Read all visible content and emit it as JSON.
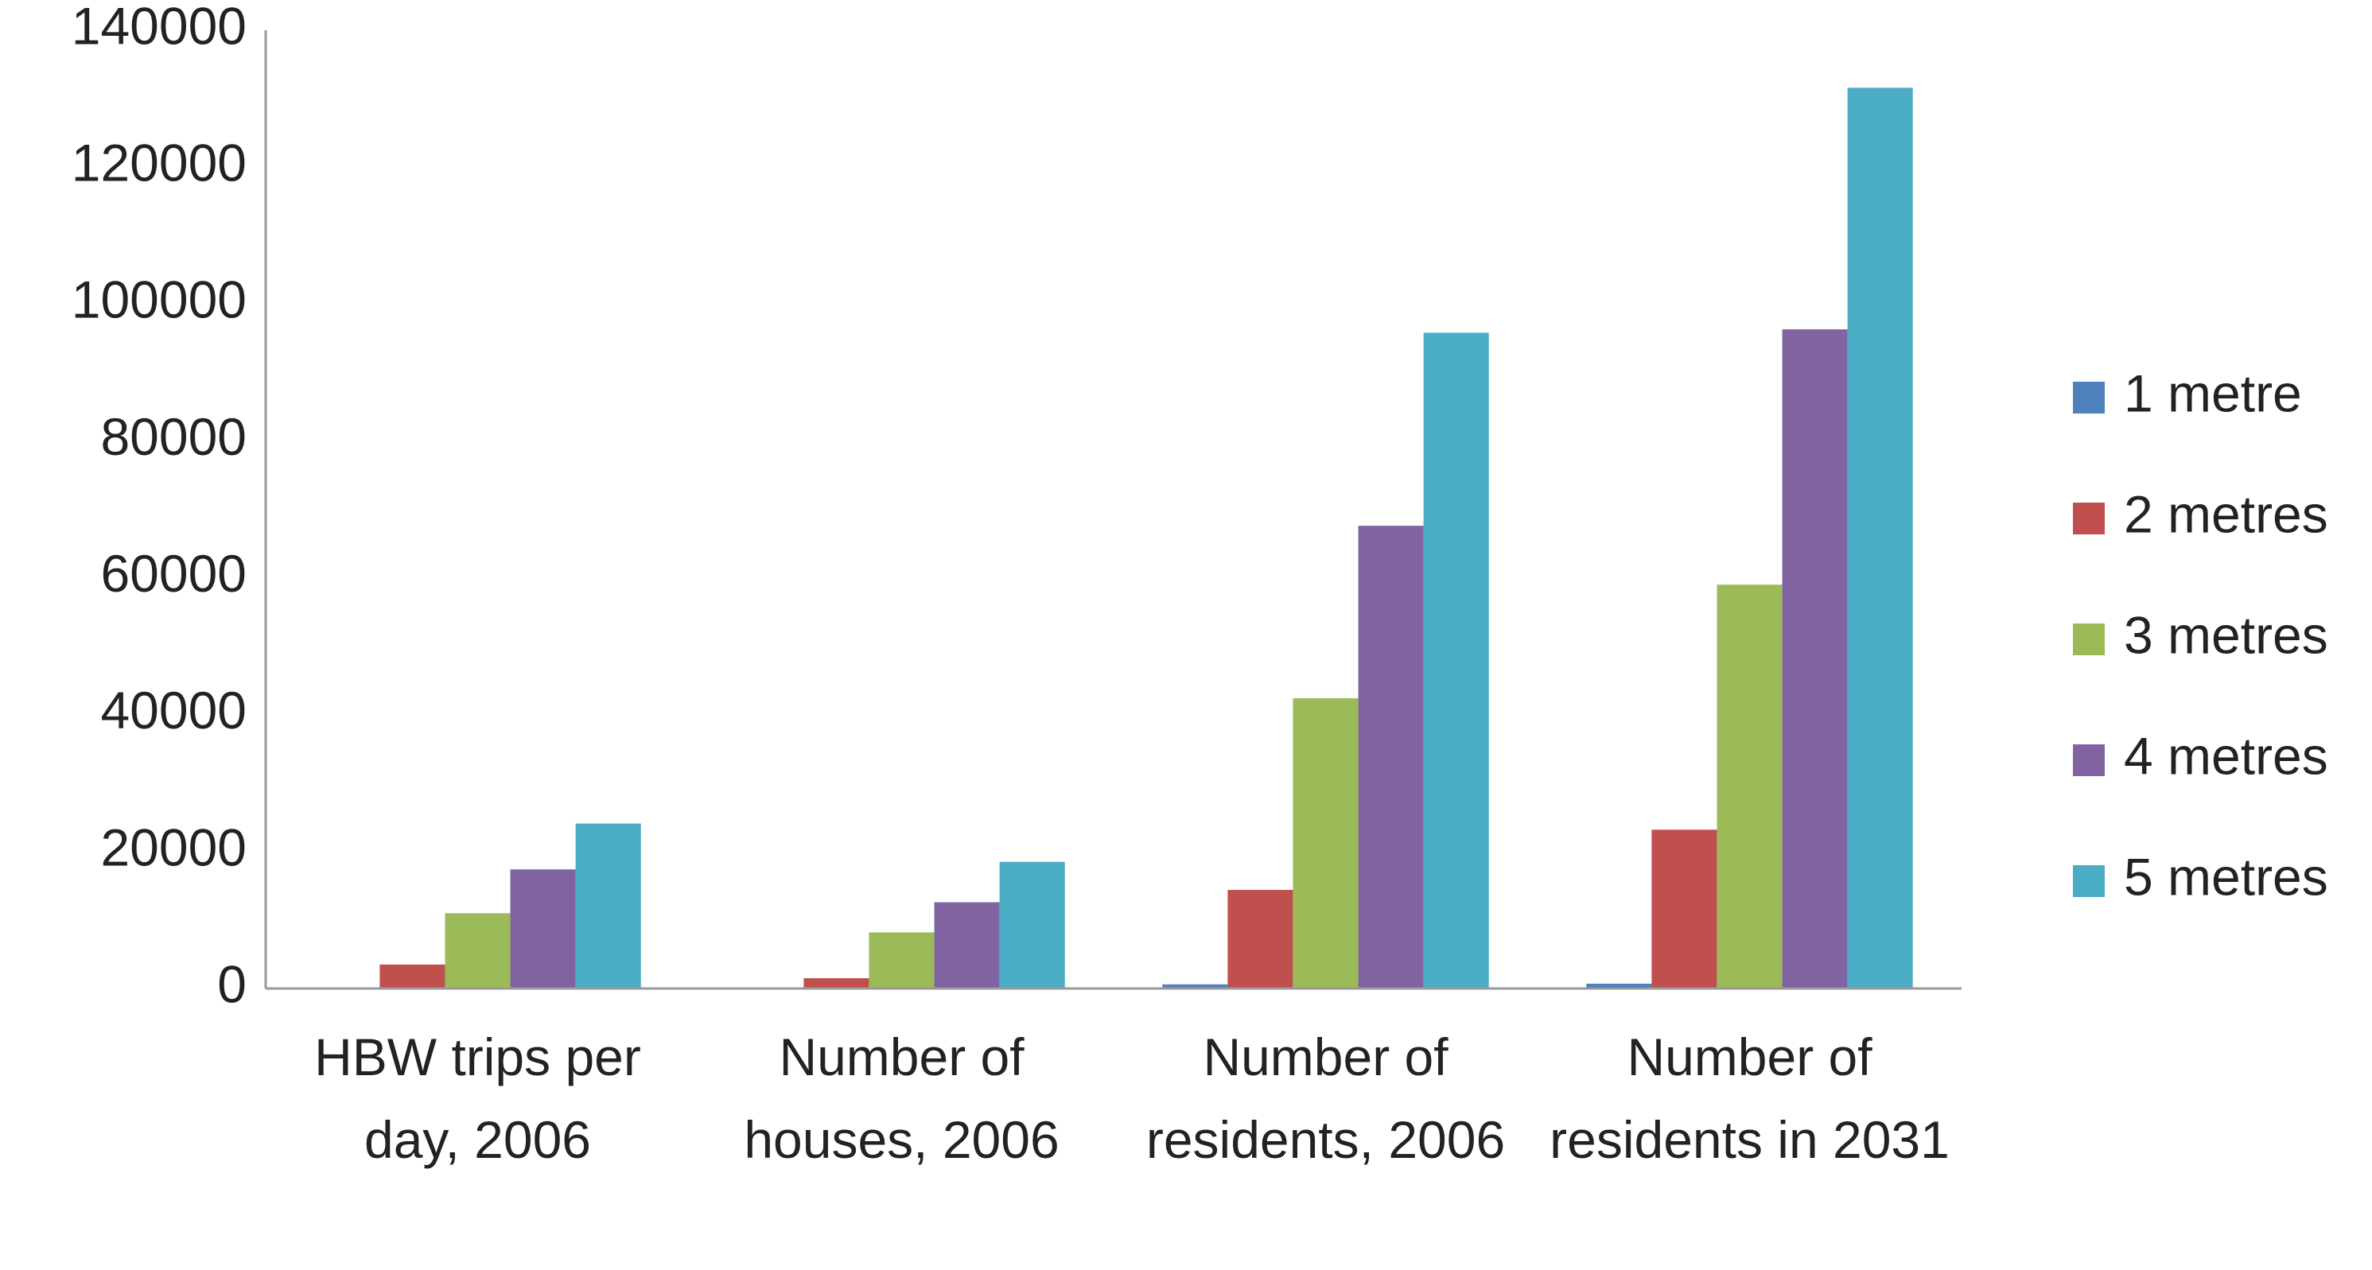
{
  "chart_data": {
    "type": "bar",
    "categories": [
      "HBW trips per day, 2006",
      "Number of houses, 2006",
      "Number of residents, 2006",
      "Number of residents in 2031"
    ],
    "series": [
      {
        "name": "1 metre",
        "color": "#4f81bd",
        "values": [
          0,
          0,
          600,
          700
        ]
      },
      {
        "name": "2 metres",
        "color": "#c0504d",
        "values": [
          3500,
          1500,
          14400,
          23200
        ]
      },
      {
        "name": "3 metres",
        "color": "#9bbb59",
        "values": [
          11000,
          8200,
          42400,
          59000
        ]
      },
      {
        "name": "4 metres",
        "color": "#8064a2",
        "values": [
          17400,
          12600,
          67600,
          96300
        ]
      },
      {
        "name": "5 metres",
        "color": "#4bacc6",
        "values": [
          24100,
          18500,
          95800,
          131600
        ]
      }
    ],
    "ylim": [
      0,
      140000
    ],
    "yticks": [
      0,
      20000,
      40000,
      60000,
      80000,
      100000,
      120000,
      140000
    ],
    "grid": false,
    "legend": "right"
  }
}
